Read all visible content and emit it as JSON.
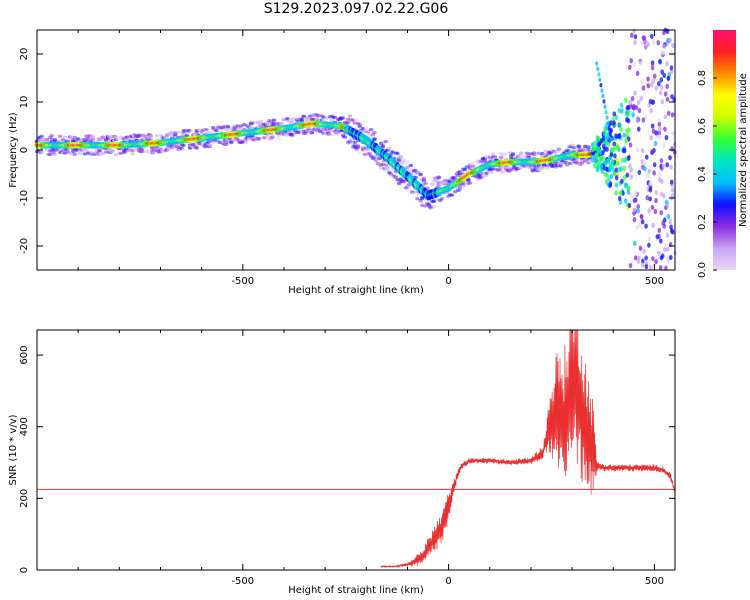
{
  "title": "S129.2023.097.02.22.G06",
  "chart_data": [
    {
      "type": "heatmap",
      "xlabel": "Height of straight line (km)",
      "ylabel": "Frequency (Hz)",
      "xlim": [
        -1000,
        550
      ],
      "ylim": [
        -25,
        25
      ],
      "xticks": [
        -500,
        0,
        500
      ],
      "yticks": [
        -20,
        -10,
        0,
        10,
        20
      ],
      "colorbar": {
        "label": "Normalized spectral amplitude",
        "range": [
          0,
          1
        ],
        "ticks": [
          0.0,
          0.2,
          0.4,
          0.6,
          0.8
        ],
        "colormap": [
          "#e8d8f8",
          "#c9a3f5",
          "#8a2be2",
          "#1010ff",
          "#00bfff",
          "#00e5c0",
          "#33ff33",
          "#ccff00",
          "#ffff00",
          "#ff8c00",
          "#ff2020",
          "#ff1070"
        ]
      },
      "ridge": {
        "x": [
          -1000,
          -900,
          -800,
          -700,
          -600,
          -500,
          -400,
          -330,
          -260,
          -200,
          -150,
          -100,
          -50,
          0,
          50,
          100,
          150,
          200,
          250,
          300,
          340,
          360
        ],
        "frequency": [
          1,
          1,
          1,
          1.5,
          2.5,
          3.5,
          4.5,
          5.5,
          5,
          2,
          -1.5,
          -5.5,
          -9.5,
          -8,
          -5,
          -3,
          -2.5,
          -2.5,
          -2,
          -1,
          -1,
          0
        ]
      },
      "noise_region_start_x": 350
    },
    {
      "type": "line",
      "xlabel": "Height of straight line (km)",
      "ylabel": "SNR (10 * v/v)",
      "xlim": [
        -1000,
        550
      ],
      "ylim": [
        0,
        670
      ],
      "xticks": [
        -500,
        0,
        500
      ],
      "yticks": [
        0,
        200,
        400,
        600
      ],
      "threshold": 225,
      "series": [
        {
          "color": "#e83030",
          "x": [
            -165,
            -130,
            -100,
            -80,
            -60,
            -50,
            -40,
            -30,
            -20,
            -10,
            0,
            10,
            20,
            30,
            50,
            100,
            150,
            200,
            230,
            240,
            250,
            260,
            270,
            280,
            290,
            300,
            310,
            320,
            330,
            340,
            350,
            360,
            380,
            400,
            450,
            500,
            520,
            540,
            550
          ],
          "y": [
            10,
            10,
            15,
            25,
            40,
            60,
            80,
            95,
            110,
            140,
            180,
            220,
            260,
            290,
            305,
            305,
            300,
            305,
            330,
            380,
            420,
            450,
            420,
            400,
            470,
            560,
            520,
            480,
            420,
            380,
            350,
            290,
            285,
            285,
            285,
            285,
            280,
            260,
            215
          ],
          "spread": [
            2,
            2,
            5,
            15,
            25,
            30,
            35,
            40,
            45,
            50,
            40,
            25,
            12,
            10,
            8,
            8,
            8,
            10,
            20,
            60,
            110,
            160,
            200,
            210,
            220,
            230,
            230,
            220,
            200,
            170,
            140,
            15,
            10,
            10,
            10,
            10,
            10,
            12,
            12
          ]
        }
      ]
    }
  ]
}
